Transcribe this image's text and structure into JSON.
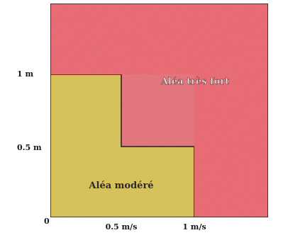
{
  "diagram": {
    "zones": {
      "very_strong": {
        "label": "Aléa très fort",
        "color": "#ee6f78"
      },
      "moderate": {
        "label": "Aléa modéré",
        "color": "#dcc75e"
      }
    },
    "y_ticks": [
      "1 m",
      "0.5 m"
    ],
    "x_ticks": [
      "0.5 m/s",
      "1 m/s"
    ],
    "origin": "0",
    "border_color": "#1a1a1a"
  }
}
